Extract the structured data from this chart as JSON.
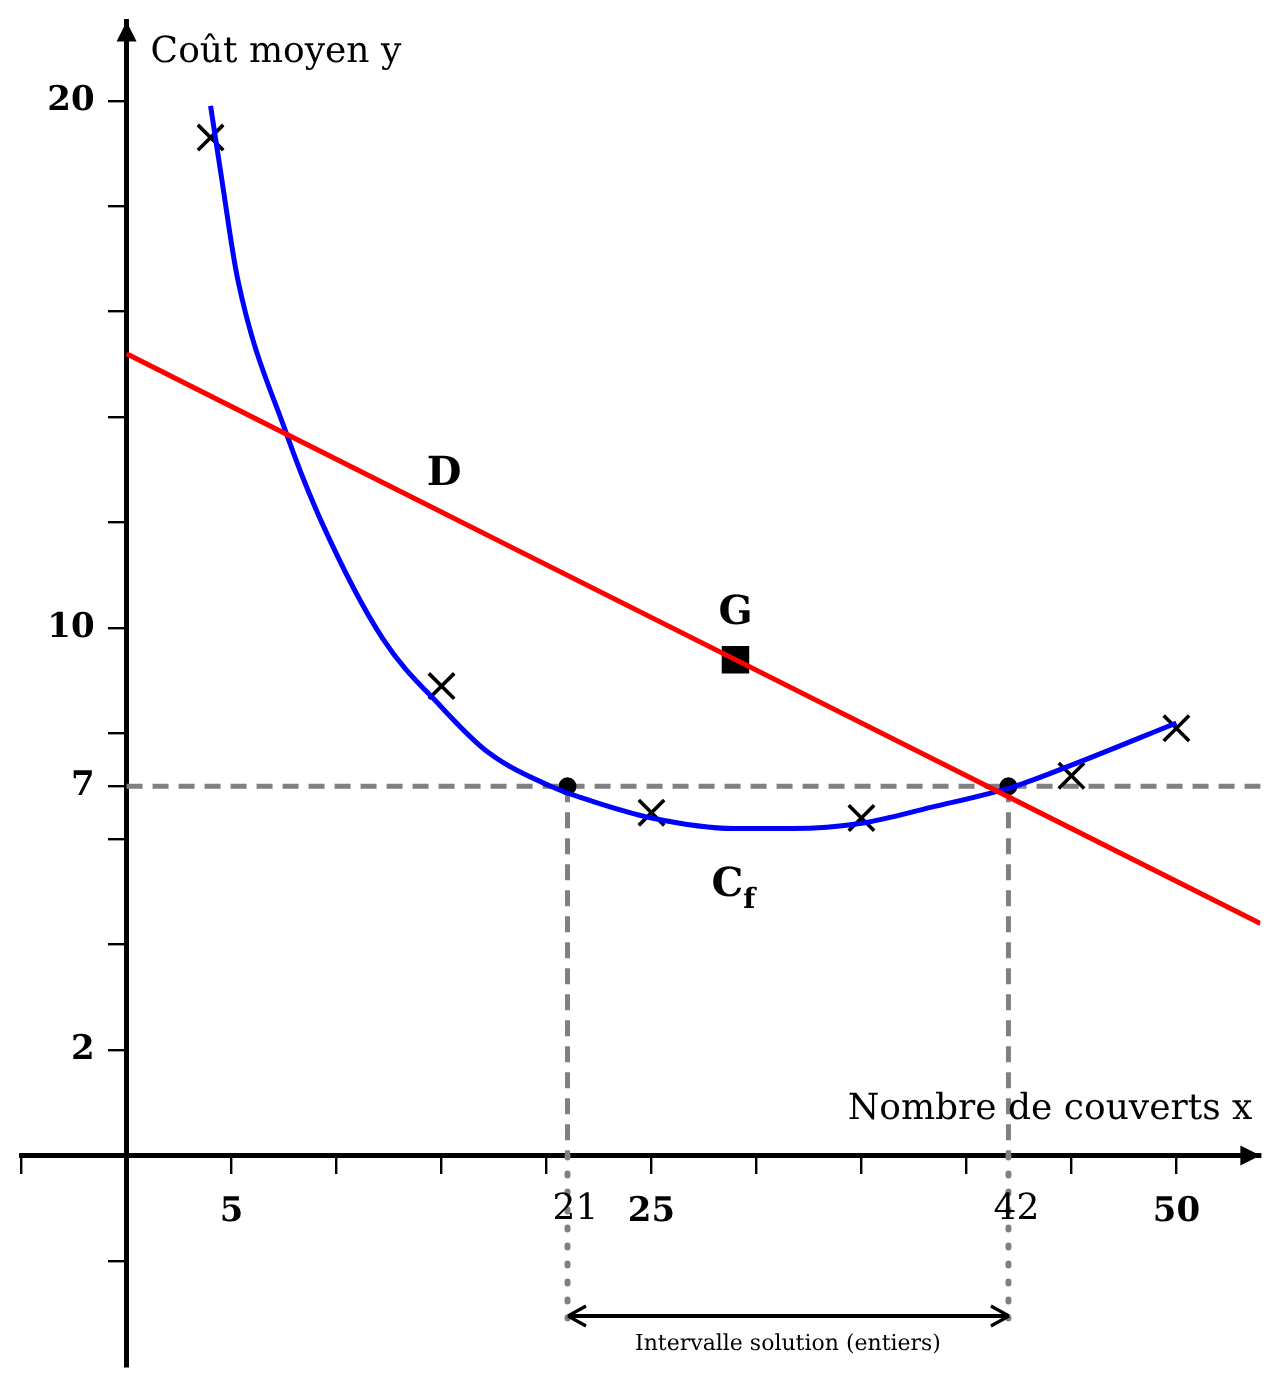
{
  "chart_data": {
    "type": "scatter",
    "xlabel": "Nombre de couverts x",
    "ylabel": "Coût moyen y",
    "xlim": [
      -5,
      54
    ],
    "ylim": [
      -4,
      21.5
    ],
    "xticks": [
      {
        "value": -5,
        "label": null
      },
      5,
      {
        "value": 10,
        "label": null
      },
      {
        "value": 15,
        "label": null
      },
      {
        "value": 20,
        "label": null
      },
      25,
      {
        "value": 30,
        "label": null
      },
      {
        "value": 35,
        "label": null
      },
      {
        "value": 40,
        "label": null
      },
      {
        "value": 45,
        "label": null
      },
      50
    ],
    "yticks": [
      {
        "value": -2,
        "label": null
      },
      2,
      {
        "value": 4,
        "label": null
      },
      {
        "value": 6,
        "label": null
      },
      7,
      {
        "value": 8,
        "label": null
      },
      10,
      {
        "value": 12,
        "label": null
      },
      {
        "value": 14,
        "label": null
      },
      {
        "value": 16,
        "label": null
      },
      {
        "value": 18,
        "label": null
      },
      20
    ],
    "grid": false,
    "legend": false,
    "series": [
      {
        "type": "line",
        "name": "D",
        "marker": "none",
        "color": "#ff0000",
        "x": [
          0,
          54
        ],
        "values": [
          15.2,
          4.4
        ]
      },
      {
        "type": "line",
        "name": "C$_{f}$",
        "marker": "none",
        "color": "#0000ff",
        "x": [
          4,
          4.5,
          5.3,
          7.6,
          9.3,
          12.2,
          15,
          17.2,
          20.2,
          22.3,
          25,
          28.9,
          31.7,
          35,
          38.3,
          42.3,
          45,
          50
        ],
        "values": [
          19.9,
          18.6,
          16.6,
          13.7,
          12,
          9.8,
          8.5,
          7.65,
          7,
          6.7,
          6.4,
          6.2,
          6.2,
          6.3,
          6.6,
          7,
          7.4,
          8.2
        ]
      },
      {
        "type": "scatter",
        "marker": "cross",
        "color": "#000000",
        "x": [
          4,
          15,
          25,
          35,
          45,
          50
        ],
        "values": [
          19.3,
          8.9,
          6.5,
          6.4,
          7.2,
          8.1
        ]
      },
      {
        "type": "scatter",
        "name": "G",
        "marker": "square",
        "color": "#000000",
        "x": [
          29
        ],
        "values": [
          9.4
        ]
      },
      {
        "type": "scatter",
        "marker": "circle",
        "color": "#000000",
        "x": [
          21,
          42
        ],
        "values": [
          7,
          7
        ]
      }
    ],
    "ref_lines": [
      {
        "axis": "y",
        "value": 7,
        "label": null,
        "color": "#808080",
        "line_style": "dashed"
      },
      {
        "axis": "x",
        "value": 21,
        "label": "21",
        "color": "#808080",
        "line_style": "dashed"
      },
      {
        "axis": "x",
        "value": 42,
        "label": "42",
        "color": "#808080",
        "line_style": "dashed"
      }
    ],
    "annotations": [
      "Intervalle solution (entiers)"
    ]
  }
}
